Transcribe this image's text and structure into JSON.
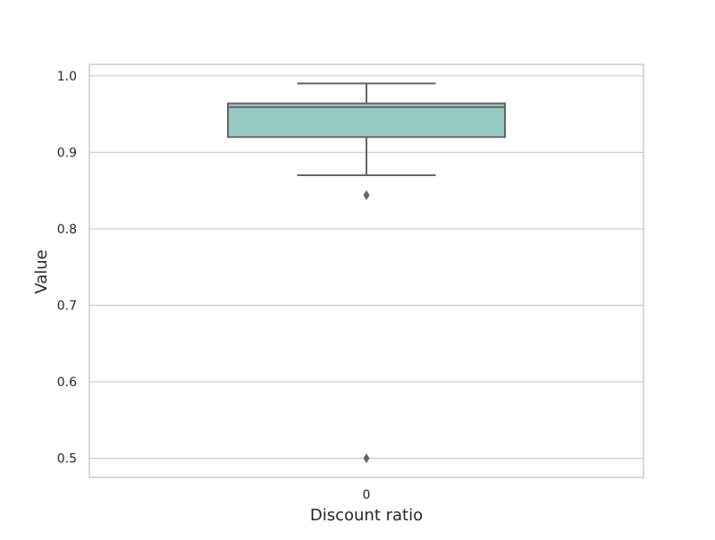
{
  "chart_data": {
    "type": "box",
    "title": "",
    "xlabel": "Discount ratio",
    "ylabel": "Value",
    "categories": [
      "0"
    ],
    "ylim": [
      0.475,
      1.015
    ],
    "yticks": [
      0.5,
      0.6,
      0.7,
      0.8,
      0.9,
      1.0
    ],
    "ytick_labels": [
      "0.5",
      "0.6",
      "0.7",
      "0.8",
      "0.9",
      "1.0"
    ],
    "grid": true,
    "legend": "none",
    "boxes": [
      {
        "category": "0",
        "whisker_low": 0.87,
        "q1": 0.92,
        "median": 0.959,
        "q3": 0.964,
        "whisker_high": 0.99,
        "outliers": [
          0.844,
          0.5
        ]
      }
    ],
    "colors": {
      "box_fill": "#96cbc3",
      "line": "#666666",
      "grid": "#cccccc",
      "frame": "#cccccc",
      "text": "#262626"
    }
  }
}
